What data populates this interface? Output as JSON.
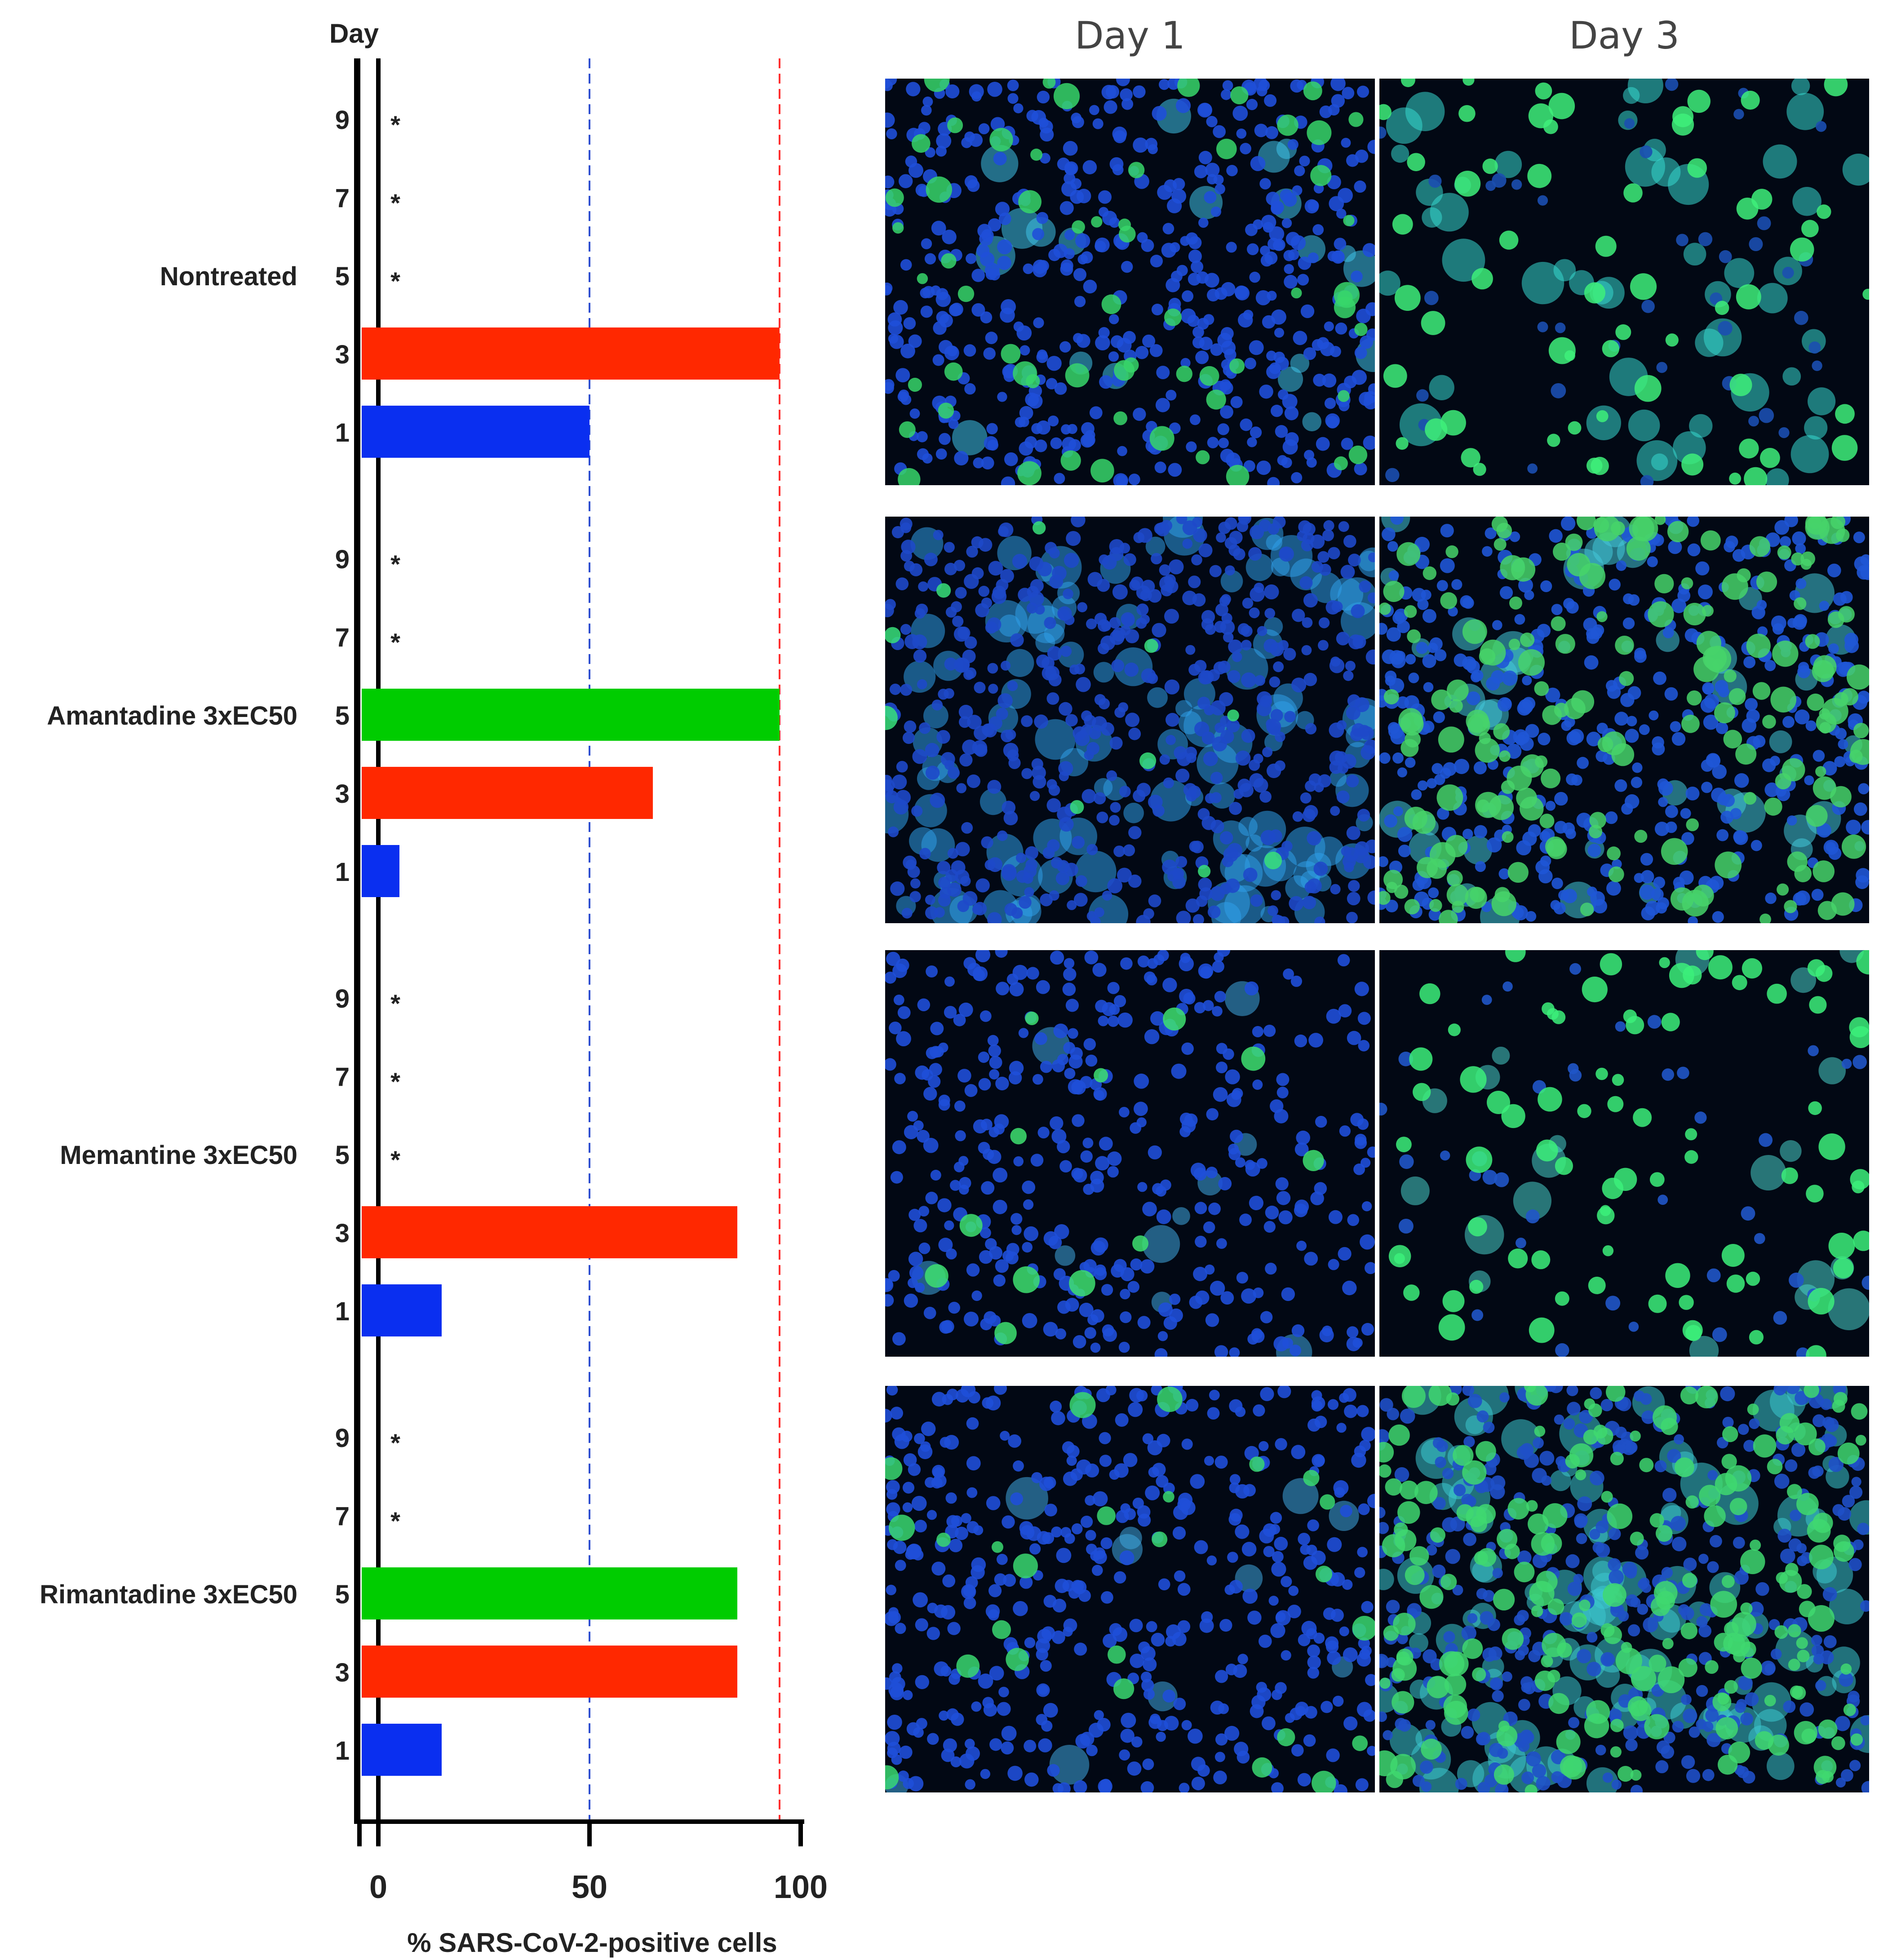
{
  "chart_data": {
    "type": "bar",
    "orientation": "horizontal",
    "day_axis_label": "Day",
    "xlabel": "% SARS-CoV-2-positive cells",
    "xlim": [
      -5,
      100
    ],
    "xticks": [
      "0",
      "50",
      "100"
    ],
    "reference_lines": [
      50,
      95
    ],
    "marker_symbol": "*",
    "days": [
      "9",
      "7",
      "5",
      "3",
      "1"
    ],
    "groups": [
      {
        "name": "Nontreated",
        "values": {
          "1": 50,
          "3": 95,
          "5": null,
          "7": null,
          "9": null
        },
        "star_days": [
          "9",
          "7",
          "5"
        ]
      },
      {
        "name": "Amantadine 3xEC50",
        "values": {
          "1": 5,
          "3": 65,
          "5": 95,
          "7": null,
          "9": null
        },
        "star_days": [
          "9",
          "7"
        ]
      },
      {
        "name": "Memantine 3xEC50",
        "values": {
          "1": 15,
          "3": 85,
          "5": null,
          "7": null,
          "9": null
        },
        "star_days": [
          "9",
          "7",
          "5"
        ]
      },
      {
        "name": "Rimantadine 3xEC50",
        "values": {
          "1": 15,
          "3": 85,
          "5": 85,
          "7": null,
          "9": null
        },
        "star_days": [
          "9",
          "7"
        ]
      }
    ],
    "colors": {
      "1": "#0a2ff0",
      "3": "#ff2800",
      "5": "#00cc00",
      "line50": "#3050d0",
      "line95": "#ff3030"
    }
  },
  "micrographs": {
    "column_titles": [
      "Day 1",
      "Day 3"
    ],
    "panels": [
      {
        "day1": "dense-blue-with-green",
        "day3": "sparse-cyan-green"
      },
      {
        "day1": "blue-with-cyan-patches",
        "day3": "dense-green-blue"
      },
      {
        "day1": "sparse-blue",
        "day3": "sparse-green"
      },
      {
        "day1": "blue-dots-small-green",
        "day3": "dense-cyan-green"
      }
    ]
  }
}
